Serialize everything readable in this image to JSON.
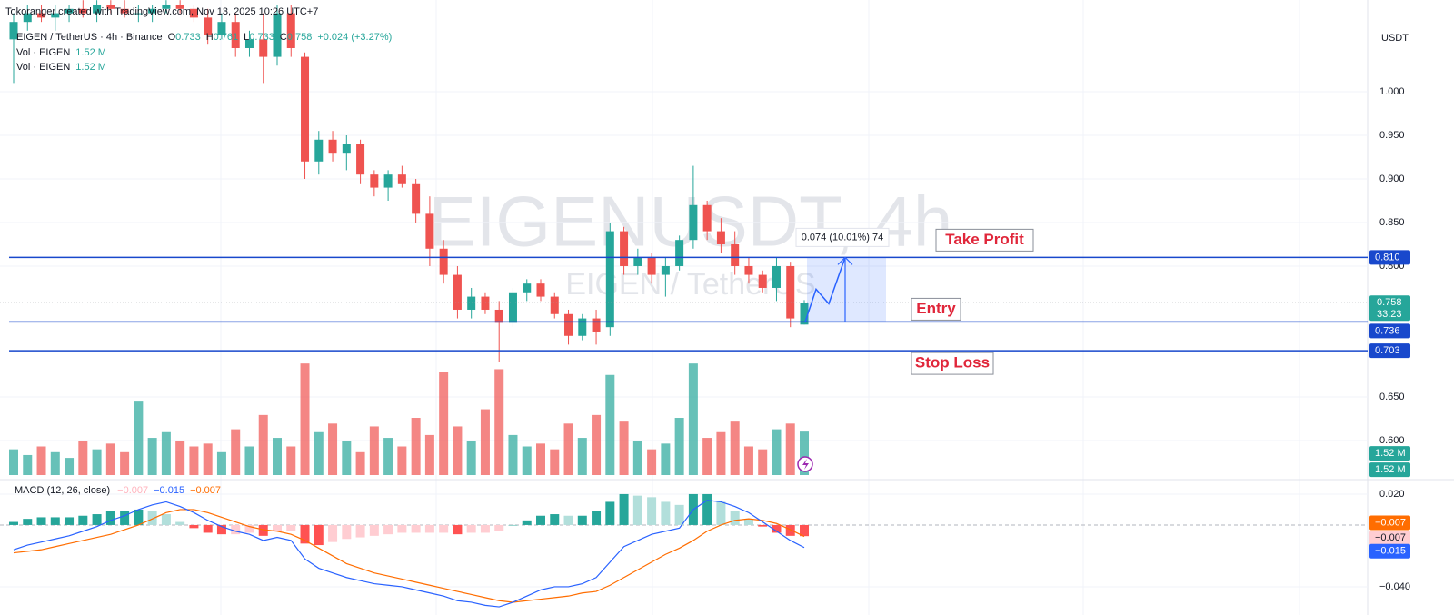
{
  "header": {
    "credit": "Tokoranger created with TradingView.com, Nov 13, 2025 10:26 UTC+7",
    "symbol": "EIGEN / TetherUS · 4h · Binance",
    "ohlc_prefixes": [
      "O",
      "H",
      "L",
      "C"
    ],
    "change": "+0.024 (+3.27%)"
  },
  "watermark": {
    "title": "EIGENUSDT, 4h",
    "subtitle": "EIGEN / TetherUS"
  },
  "measure_label": "0.074 (10.01%) 74",
  "chart_data": [
    {
      "type": "candlestick",
      "currency": "USDT",
      "up_color": "#26a69a",
      "down_color": "#ef5350",
      "open": [
        1.06,
        1.08,
        1.09,
        1.085,
        1.09,
        1.095,
        1.09,
        1.1,
        1.095,
        1.09,
        1.09,
        1.095,
        1.1,
        1.095,
        1.085,
        1.065,
        1.08,
        1.05,
        1.06,
        1.04,
        1.09,
        1.04,
        0.92,
        0.945,
        0.93,
        0.94,
        0.905,
        0.89,
        0.905,
        0.895,
        0.86,
        0.82,
        0.79,
        0.75,
        0.765,
        0.75,
        0.735,
        0.77,
        0.78,
        0.765,
        0.745,
        0.72,
        0.74,
        0.73,
        0.84,
        0.8,
        0.81,
        0.79,
        0.8,
        0.83,
        0.87,
        0.84,
        0.825,
        0.8,
        0.79,
        0.775,
        0.8,
        0.733
      ],
      "high": [
        1.09,
        1.1,
        1.1,
        1.1,
        1.1,
        1.105,
        1.105,
        1.105,
        1.105,
        1.1,
        1.1,
        1.105,
        1.105,
        1.1,
        1.095,
        1.09,
        1.09,
        1.07,
        1.09,
        1.1,
        1.1,
        1.045,
        0.955,
        0.955,
        0.95,
        0.945,
        0.91,
        0.91,
        0.915,
        0.9,
        0.88,
        0.83,
        0.8,
        0.775,
        0.77,
        0.76,
        0.775,
        0.785,
        0.785,
        0.77,
        0.75,
        0.745,
        0.75,
        0.85,
        0.845,
        0.82,
        0.815,
        0.81,
        0.835,
        0.915,
        0.875,
        0.855,
        0.84,
        0.81,
        0.795,
        0.81,
        0.805,
        0.761
      ],
      "low": [
        1.01,
        1.07,
        1.08,
        1.07,
        1.08,
        1.085,
        1.08,
        1.09,
        1.085,
        1.08,
        1.08,
        1.09,
        1.09,
        1.08,
        1.055,
        1.06,
        1.04,
        1.04,
        1.01,
        1.03,
        1.04,
        0.9,
        0.905,
        0.92,
        0.91,
        0.895,
        0.88,
        0.875,
        0.89,
        0.85,
        0.8,
        0.78,
        0.74,
        0.74,
        0.745,
        0.69,
        0.73,
        0.76,
        0.76,
        0.74,
        0.71,
        0.715,
        0.71,
        0.72,
        0.79,
        0.79,
        0.78,
        0.765,
        0.795,
        0.82,
        0.83,
        0.815,
        0.79,
        0.78,
        0.77,
        0.76,
        0.73,
        0.733
      ],
      "close": [
        1.08,
        1.09,
        1.085,
        1.09,
        1.095,
        1.09,
        1.1,
        1.095,
        1.09,
        1.09,
        1.095,
        1.1,
        1.095,
        1.085,
        1.065,
        1.08,
        1.05,
        1.06,
        1.04,
        1.09,
        1.05,
        0.92,
        0.945,
        0.93,
        0.94,
        0.905,
        0.89,
        0.905,
        0.895,
        0.86,
        0.82,
        0.79,
        0.75,
        0.765,
        0.75,
        0.735,
        0.77,
        0.78,
        0.765,
        0.745,
        0.72,
        0.74,
        0.725,
        0.84,
        0.8,
        0.81,
        0.79,
        0.8,
        0.83,
        0.87,
        0.84,
        0.825,
        0.8,
        0.79,
        0.775,
        0.8,
        0.74,
        0.758
      ],
      "ylim": [
        0.5583,
        1.1052
      ],
      "yticks": [
        {
          "value": 0.6,
          "label": "0.600"
        },
        {
          "value": 0.65,
          "label": "0.650"
        },
        {
          "value": 0.8,
          "label": "0.800"
        },
        {
          "value": 0.85,
          "label": "0.850"
        },
        {
          "value": 0.9,
          "label": "0.900"
        },
        {
          "value": 0.95,
          "label": "0.950"
        },
        {
          "value": 1.0,
          "label": "1.000"
        }
      ],
      "levels": [
        {
          "name": "Take Profit",
          "value": 0.81,
          "label": "0.810",
          "color": "#1848cc"
        },
        {
          "name": "Entry",
          "value": 0.736,
          "label": "0.736",
          "color": "#1848cc"
        },
        {
          "name": "Stop Loss",
          "value": 0.703,
          "label": "0.703",
          "color": "#1848cc"
        }
      ],
      "current": {
        "value": 0.758,
        "label": "0.758",
        "timer": "33:23",
        "color": "#26a69a"
      }
    },
    {
      "type": "bar",
      "legend": [
        "Vol · EIGEN",
        "Vol · EIGEN"
      ],
      "values": [
        0.9,
        0.7,
        1.0,
        0.8,
        0.6,
        1.2,
        0.9,
        1.1,
        0.8,
        2.6,
        1.3,
        1.5,
        1.2,
        1.0,
        1.1,
        0.8,
        1.6,
        1.0,
        2.1,
        1.3,
        1.0,
        3.9,
        1.5,
        1.8,
        1.2,
        0.8,
        1.7,
        1.3,
        1.0,
        2.0,
        1.4,
        3.6,
        1.7,
        1.2,
        2.3,
        3.7,
        1.4,
        1.0,
        1.1,
        0.9,
        1.8,
        1.3,
        2.1,
        3.5,
        1.9,
        1.2,
        0.9,
        1.1,
        2.0,
        3.9,
        1.3,
        1.5,
        1.9,
        1.0,
        0.9,
        1.6,
        1.8,
        1.52
      ],
      "last_label": "1.52 M",
      "ylim": [
        0,
        6.35
      ]
    },
    {
      "type": "macd",
      "title": "MACD (12, 26, close)",
      "histogram": {
        "values": [
          0.002,
          0.004,
          0.005,
          0.005,
          0.005,
          0.006,
          0.007,
          0.009,
          0.009,
          0.01,
          0.009,
          0.007,
          0.002,
          -0.002,
          -0.005,
          -0.006,
          -0.006,
          -0.005,
          -0.007,
          -0.004,
          -0.004,
          -0.012,
          -0.013,
          -0.011,
          -0.009,
          -0.008,
          -0.007,
          -0.006,
          -0.005,
          -0.005,
          -0.005,
          -0.005,
          -0.006,
          -0.005,
          -0.005,
          -0.004,
          0.0,
          0.003,
          0.006,
          0.007,
          0.006,
          0.006,
          0.009,
          0.015,
          0.02,
          0.019,
          0.018,
          0.015,
          0.013,
          0.02,
          0.02,
          0.015,
          0.009,
          0.004,
          -0.001,
          -0.005,
          -0.007,
          -0.0072
        ],
        "last_label": "−0.007"
      },
      "macd": {
        "color": "#2962ff",
        "values": [
          -0.016,
          -0.013,
          -0.011,
          -0.009,
          -0.007,
          -0.004,
          -0.001,
          0.003,
          0.006,
          0.01,
          0.013,
          0.015,
          0.012,
          0.008,
          0.003,
          -0.001,
          -0.004,
          -0.006,
          -0.01,
          -0.008,
          -0.01,
          -0.022,
          -0.028,
          -0.031,
          -0.034,
          -0.036,
          -0.038,
          -0.039,
          -0.04,
          -0.042,
          -0.044,
          -0.046,
          -0.049,
          -0.05,
          -0.052,
          -0.053,
          -0.05,
          -0.046,
          -0.042,
          -0.04,
          -0.04,
          -0.038,
          -0.034,
          -0.024,
          -0.014,
          -0.01,
          -0.006,
          -0.004,
          -0.002,
          0.01,
          0.016,
          0.015,
          0.012,
          0.008,
          0.002,
          -0.004,
          -0.01,
          -0.0146
        ],
        "last_label": "−0.015"
      },
      "signal": {
        "color": "#ff6d00",
        "values": [
          -0.018,
          -0.017,
          -0.016,
          -0.014,
          -0.012,
          -0.01,
          -0.008,
          -0.006,
          -0.003,
          0.0,
          0.004,
          0.008,
          0.01,
          0.01,
          0.008,
          0.005,
          0.002,
          -0.001,
          -0.003,
          -0.004,
          -0.006,
          -0.01,
          -0.015,
          -0.02,
          -0.025,
          -0.028,
          -0.031,
          -0.033,
          -0.035,
          -0.037,
          -0.039,
          -0.041,
          -0.043,
          -0.045,
          -0.047,
          -0.049,
          -0.05,
          -0.049,
          -0.048,
          -0.047,
          -0.046,
          -0.044,
          -0.043,
          -0.039,
          -0.034,
          -0.029,
          -0.024,
          -0.019,
          -0.015,
          -0.01,
          -0.004,
          0.0,
          0.003,
          0.004,
          0.003,
          0.001,
          -0.003,
          -0.0074
        ],
        "last_label": "−0.007"
      },
      "ylim": [
        -0.0512,
        0.0282
      ],
      "yticks": [
        {
          "value": -0.04,
          "label": "−0.040"
        },
        {
          "value": 0.02,
          "label": "0.020"
        }
      ]
    }
  ]
}
